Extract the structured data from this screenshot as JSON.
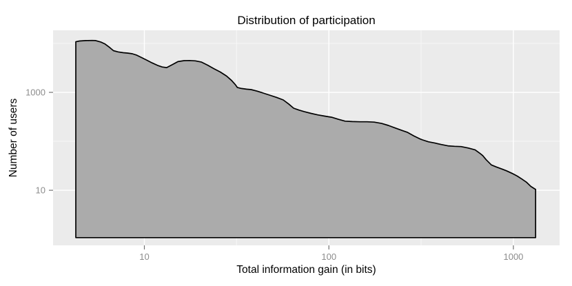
{
  "chart_data": {
    "type": "area",
    "title": "Distribution of participation",
    "xlabel": "Total information gain (in bits)",
    "ylabel": "Number of users",
    "x_scale": "log10",
    "y_scale": "log10",
    "x_domain": [
      3.2,
      1780
    ],
    "y_domain": [
      0.75,
      18500
    ],
    "x_major_ticks": [
      {
        "value": 10,
        "label": "10"
      },
      {
        "value": 100,
        "label": "100"
      },
      {
        "value": 1000,
        "label": "1000"
      }
    ],
    "x_minor_ticks": [
      31.6,
      316
    ],
    "y_major_ticks": [
      {
        "value": 10,
        "label": "10"
      },
      {
        "value": 1000,
        "label": "1000"
      }
    ],
    "y_minor_ticks": [
      100,
      10000
    ],
    "grid": true,
    "legend": "none",
    "baseline": 1.08,
    "points": [
      [
        4.25,
        10800
      ],
      [
        4.45,
        11200
      ],
      [
        4.8,
        11400
      ],
      [
        5.2,
        11500
      ],
      [
        5.45,
        11400
      ],
      [
        5.8,
        10700
      ],
      [
        6.1,
        9800
      ],
      [
        6.5,
        8200
      ],
      [
        6.8,
        7100
      ],
      [
        7.2,
        6700
      ],
      [
        7.7,
        6450
      ],
      [
        8.1,
        6350
      ],
      [
        8.6,
        6150
      ],
      [
        9.1,
        5750
      ],
      [
        9.7,
        5100
      ],
      [
        10.3,
        4550
      ],
      [
        11.0,
        4000
      ],
      [
        11.8,
        3550
      ],
      [
        12.5,
        3300
      ],
      [
        13.2,
        3200
      ],
      [
        14.1,
        3650
      ],
      [
        15.2,
        4250
      ],
      [
        16.4,
        4450
      ],
      [
        17.6,
        4480
      ],
      [
        18.9,
        4400
      ],
      [
        20.4,
        4150
      ],
      [
        22.0,
        3600
      ],
      [
        23.8,
        3050
      ],
      [
        25.8,
        2600
      ],
      [
        27.9,
        2150
      ],
      [
        29.7,
        1750
      ],
      [
        31.2,
        1420
      ],
      [
        31.9,
        1260
      ],
      [
        33.6,
        1200
      ],
      [
        35.8,
        1160
      ],
      [
        37.9,
        1140
      ],
      [
        40.8,
        1060
      ],
      [
        44.0,
        970
      ],
      [
        47.7,
        880
      ],
      [
        52.0,
        790
      ],
      [
        56.6,
        700
      ],
      [
        60.5,
        580
      ],
      [
        64.4,
        475
      ],
      [
        68.8,
        435
      ],
      [
        73.4,
        405
      ],
      [
        80.0,
        372
      ],
      [
        87.0,
        347
      ],
      [
        95.0,
        327
      ],
      [
        103.5,
        310
      ],
      [
        112.5,
        282
      ],
      [
        122.5,
        258
      ],
      [
        134.0,
        253
      ],
      [
        147.0,
        251
      ],
      [
        161.0,
        251
      ],
      [
        176.0,
        247
      ],
      [
        193.0,
        232
      ],
      [
        210.0,
        211
      ],
      [
        230.0,
        186
      ],
      [
        250.0,
        166
      ],
      [
        267.0,
        152
      ],
      [
        289.0,
        129
      ],
      [
        310.0,
        113
      ],
      [
        322.0,
        107
      ],
      [
        346.0,
        98
      ],
      [
        376.0,
        92
      ],
      [
        407.0,
        86
      ],
      [
        441.0,
        81
      ],
      [
        480.0,
        79
      ],
      [
        521.0,
        78
      ],
      [
        570.0,
        73
      ],
      [
        620.0,
        67
      ],
      [
        658.0,
        57
      ],
      [
        682.0,
        51
      ],
      [
        712.0,
        42
      ],
      [
        760.0,
        33
      ],
      [
        807.0,
        30
      ],
      [
        870.0,
        27
      ],
      [
        917.0,
        25
      ],
      [
        988.0,
        22
      ],
      [
        1050.0,
        19.5
      ],
      [
        1110.0,
        17
      ],
      [
        1180.0,
        14.5
      ],
      [
        1244.0,
        12
      ],
      [
        1320.0,
        10.4
      ]
    ],
    "colors": {
      "panel_bg": "#EBEBEB",
      "grid_major": "#FFFFFF",
      "grid_minor": "#F7F7F7",
      "area_fill": "#ABABAB",
      "area_stroke": "#000000",
      "tick_mark": "#707070",
      "tick_label": "#8C8C8C",
      "text": "#000000"
    }
  }
}
